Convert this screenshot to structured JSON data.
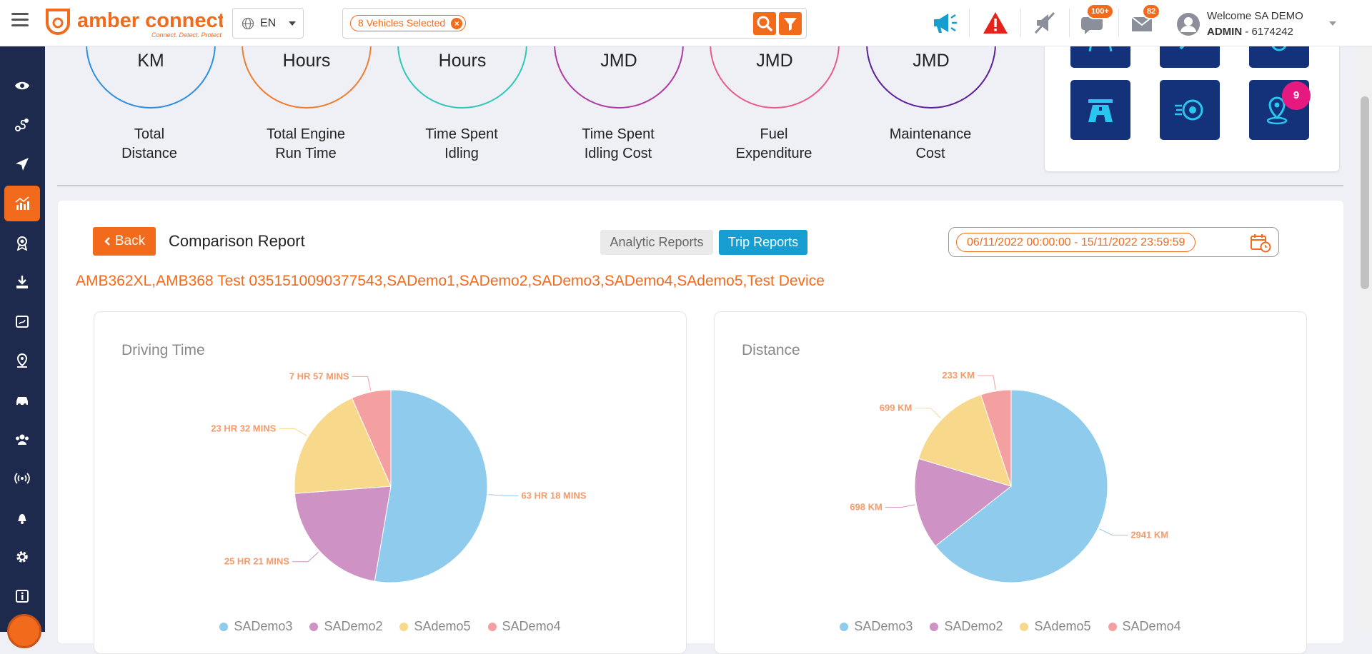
{
  "header": {
    "logo_text": "amber connect",
    "logo_tagline": "Connect. Detect. Protect",
    "language": "EN",
    "vehicle_chip": "8 Vehicles Selected",
    "notifications_badge": "100+",
    "messages_badge": "82",
    "welcome": "Welcome SA DEMO",
    "role_bold": "ADMIN",
    "role_id": " - 6174242"
  },
  "summary": {
    "items": [
      {
        "unit": "KM",
        "label_line1": "Total",
        "label_line2": "Distance",
        "color": "#2e8ee0"
      },
      {
        "unit": "Hours",
        "label_line1": "Total Engine",
        "label_line2": "Run Time",
        "color": "#ef7d2e"
      },
      {
        "unit": "Hours",
        "label_line1": "Time Spent",
        "label_line2": "Idling",
        "color": "#2fc7b5"
      },
      {
        "unit": "JMD",
        "label_line1": "Time Spent",
        "label_line2": "Idling Cost",
        "color": "#b03aa3"
      },
      {
        "unit": "JMD",
        "label_line1": "Fuel",
        "label_line2": "Expenditure",
        "color": "#e85c8a"
      },
      {
        "unit": "JMD",
        "label_line1": "Maintenance",
        "label_line2": "Cost",
        "color": "#5d1f9a"
      }
    ]
  },
  "quick_access": {
    "geofence_badge": "9"
  },
  "report": {
    "back_label": "Back",
    "title": "Comparison Report",
    "tab_analytic": "Analytic Reports",
    "tab_trip": "Trip Reports",
    "date_range": "06/11/2022 00:00:00 - 15/11/2022 23:59:59",
    "vehicles": "AMB362XL,AMB368 Test 0351510090377543,SADemo1,SADemo2,SADemo3,SADemo4,SAdemo5,Test Device"
  },
  "chart_data": [
    {
      "type": "pie",
      "title": "Driving Time",
      "categories": [
        "SADemo3",
        "SADemo2",
        "SAdemo5",
        "SADemo4"
      ],
      "values": [
        63.3,
        25.35,
        23.53,
        7.95
      ],
      "labels": [
        "63 HR 18 MINS",
        "25 HR 21 MINS",
        "23 HR 32 MINS",
        "7 HR 57 MINS"
      ],
      "colors": [
        "#8ecbec",
        "#cf92c5",
        "#f8d98b",
        "#f5a0a0"
      ],
      "legend": "bottom"
    },
    {
      "type": "pie",
      "title": "Distance",
      "categories": [
        "SADemo3",
        "SADemo2",
        "SAdemo5",
        "SADemo4"
      ],
      "values": [
        2941,
        698,
        699,
        233
      ],
      "labels": [
        "2941 KM",
        "698 KM",
        "699 KM",
        "233 KM"
      ],
      "colors": [
        "#8ecbec",
        "#cf92c5",
        "#f8d98b",
        "#f5a0a0"
      ],
      "legend": "bottom"
    }
  ]
}
